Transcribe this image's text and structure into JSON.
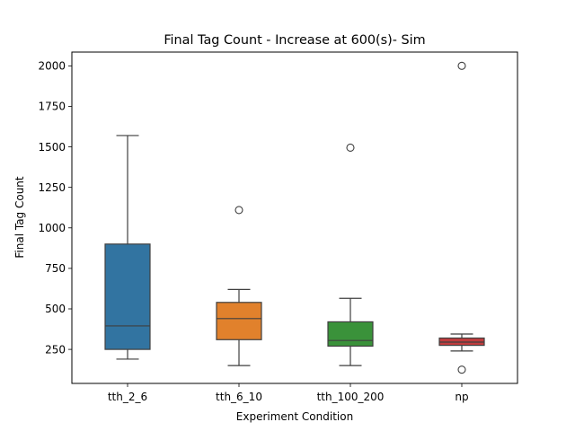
{
  "chart_data": {
    "type": "box",
    "title": "Final Tag Count - Increase at 600(s)- Sim",
    "xlabel": "Experiment Condition",
    "ylabel": "Final Tag Count",
    "ylim": [
      40,
      2085
    ],
    "yticks": [
      250,
      500,
      750,
      1000,
      1250,
      1500,
      1750,
      2000
    ],
    "grid": false,
    "categories": [
      "tth_2_6",
      "tth_6_10",
      "tth_100_200",
      "np"
    ],
    "boxes": [
      {
        "category": "tth_2_6",
        "color": "#3274a1",
        "whisker_low": 190,
        "q1": 250,
        "median": 395,
        "q3": 900,
        "whisker_high": 1570,
        "outliers": []
      },
      {
        "category": "tth_6_10",
        "color": "#e1812c",
        "whisker_low": 150,
        "q1": 310,
        "median": 440,
        "q3": 540,
        "whisker_high": 620,
        "outliers": [
          1110
        ]
      },
      {
        "category": "tth_100_200",
        "color": "#3a923a",
        "whisker_low": 150,
        "q1": 270,
        "median": 305,
        "q3": 420,
        "whisker_high": 565,
        "outliers": [
          1495
        ]
      },
      {
        "category": "np",
        "color": "#c03d3e",
        "whisker_low": 240,
        "q1": 275,
        "median": 295,
        "q3": 320,
        "whisker_high": 345,
        "outliers": [
          2000,
          125
        ]
      }
    ]
  }
}
